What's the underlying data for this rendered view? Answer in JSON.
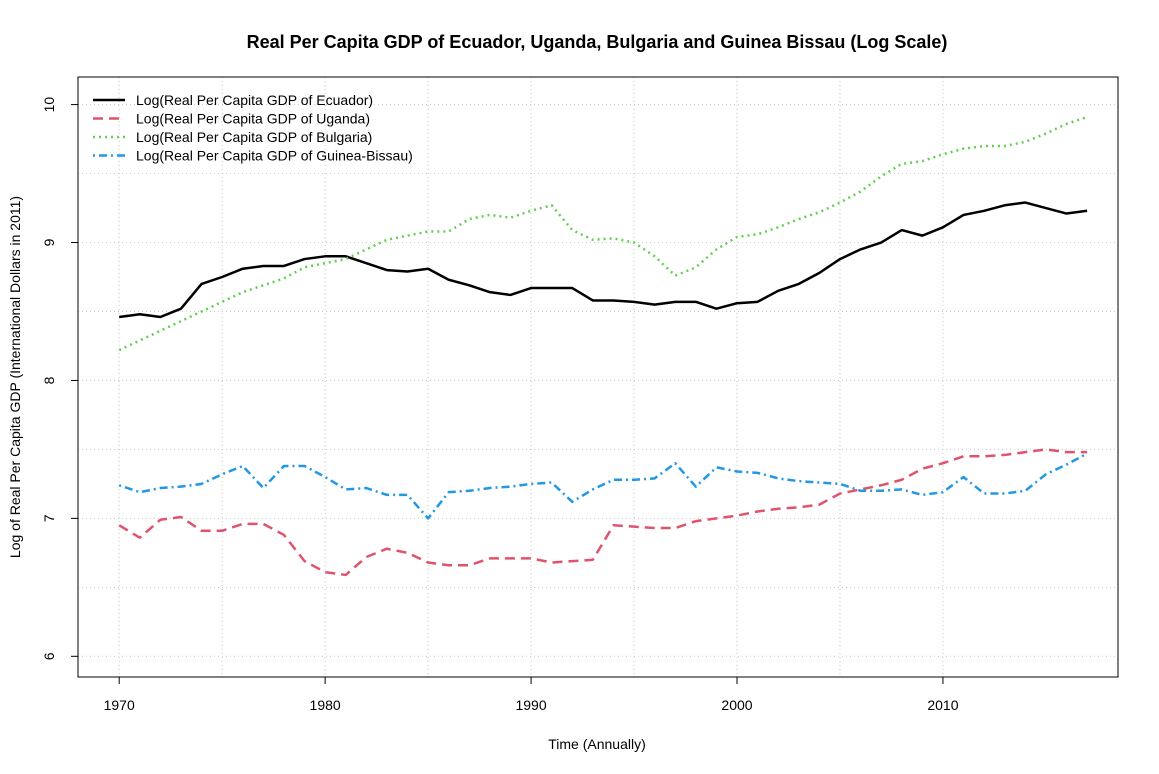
{
  "chart_data": {
    "type": "line",
    "title": "Real Per Capita GDP of Ecuador, Uganda, Bulgaria and Guinea Bissau (Log Scale)",
    "xlabel": "Time (Annually)",
    "ylabel": "Log of Real Per Capita GDP (International Dollars in 2011)",
    "xlim": [
      1968,
      2018.5
    ],
    "ylim": [
      5.85,
      10.2
    ],
    "xticks": [
      1970,
      1980,
      1990,
      2000,
      2010
    ],
    "yticks": [
      6,
      7,
      8,
      9,
      10
    ],
    "grid": true,
    "legend_position": "top-left",
    "x": [
      1970,
      1971,
      1972,
      1973,
      1974,
      1975,
      1976,
      1977,
      1978,
      1979,
      1980,
      1981,
      1982,
      1983,
      1984,
      1985,
      1986,
      1987,
      1988,
      1989,
      1990,
      1991,
      1992,
      1993,
      1994,
      1995,
      1996,
      1997,
      1998,
      1999,
      2000,
      2001,
      2002,
      2003,
      2004,
      2005,
      2006,
      2007,
      2008,
      2009,
      2010,
      2011,
      2012,
      2013,
      2014,
      2015,
      2016,
      2017
    ],
    "series": [
      {
        "name": "Log(Real Per Capita GDP of Ecuador)",
        "color": "#000000",
        "dash": "solid",
        "values": [
          8.46,
          8.48,
          8.46,
          8.52,
          8.7,
          8.75,
          8.81,
          8.83,
          8.83,
          8.88,
          8.9,
          8.9,
          8.85,
          8.8,
          8.79,
          8.81,
          8.73,
          8.69,
          8.64,
          8.62,
          8.67,
          8.67,
          8.67,
          8.58,
          8.58,
          8.57,
          8.55,
          8.57,
          8.57,
          8.52,
          8.56,
          8.57,
          8.65,
          8.7,
          8.78,
          8.88,
          8.95,
          9.0,
          9.09,
          9.05,
          9.11,
          9.2,
          9.23,
          9.27,
          9.29,
          9.25,
          9.21,
          9.23
        ]
      },
      {
        "name": "Log(Real Per Capita GDP of Uganda)",
        "color": "#DF536B",
        "dash": "dashed",
        "values": [
          6.95,
          6.86,
          6.99,
          7.01,
          6.91,
          6.91,
          6.96,
          6.96,
          6.88,
          6.69,
          6.61,
          6.59,
          6.72,
          6.78,
          6.75,
          6.68,
          6.66,
          6.66,
          6.71,
          6.71,
          6.71,
          6.68,
          6.69,
          6.7,
          6.95,
          6.94,
          6.93,
          6.93,
          6.98,
          7.0,
          7.02,
          7.05,
          7.07,
          7.08,
          7.1,
          7.18,
          7.21,
          7.24,
          7.28,
          7.36,
          7.4,
          7.45,
          7.45,
          7.46,
          7.48,
          7.5,
          7.48,
          7.48
        ]
      },
      {
        "name": "Log(Real Per Capita GDP of Bulgaria)",
        "color": "#61D04F",
        "dash": "dotted",
        "values": [
          8.22,
          8.29,
          8.36,
          8.43,
          8.5,
          8.57,
          8.64,
          8.69,
          8.74,
          8.82,
          8.85,
          8.88,
          8.95,
          9.02,
          9.05,
          9.08,
          9.08,
          9.17,
          9.2,
          9.18,
          9.23,
          9.27,
          9.09,
          9.02,
          9.03,
          9.0,
          8.9,
          8.76,
          8.82,
          8.95,
          9.04,
          9.06,
          9.11,
          9.17,
          9.22,
          9.29,
          9.37,
          9.48,
          9.57,
          9.59,
          9.64,
          9.68,
          9.7,
          9.7,
          9.73,
          9.79,
          9.86,
          9.91
        ]
      },
      {
        "name": "Log(Real Per Capita GDP of Guinea-Bissau)",
        "color": "#2297E6",
        "dash": "dotdash",
        "values": [
          7.24,
          7.19,
          7.22,
          7.23,
          7.25,
          7.32,
          7.38,
          7.22,
          7.38,
          7.38,
          7.3,
          7.21,
          7.22,
          7.17,
          7.17,
          7.0,
          7.19,
          7.2,
          7.22,
          7.23,
          7.25,
          7.26,
          7.12,
          7.21,
          7.28,
          7.28,
          7.29,
          7.4,
          7.23,
          7.37,
          7.34,
          7.33,
          7.29,
          7.27,
          7.26,
          7.25,
          7.2,
          7.2,
          7.21,
          7.17,
          7.19,
          7.3,
          7.18,
          7.18,
          7.2,
          7.32,
          7.39,
          7.47
        ]
      }
    ]
  }
}
